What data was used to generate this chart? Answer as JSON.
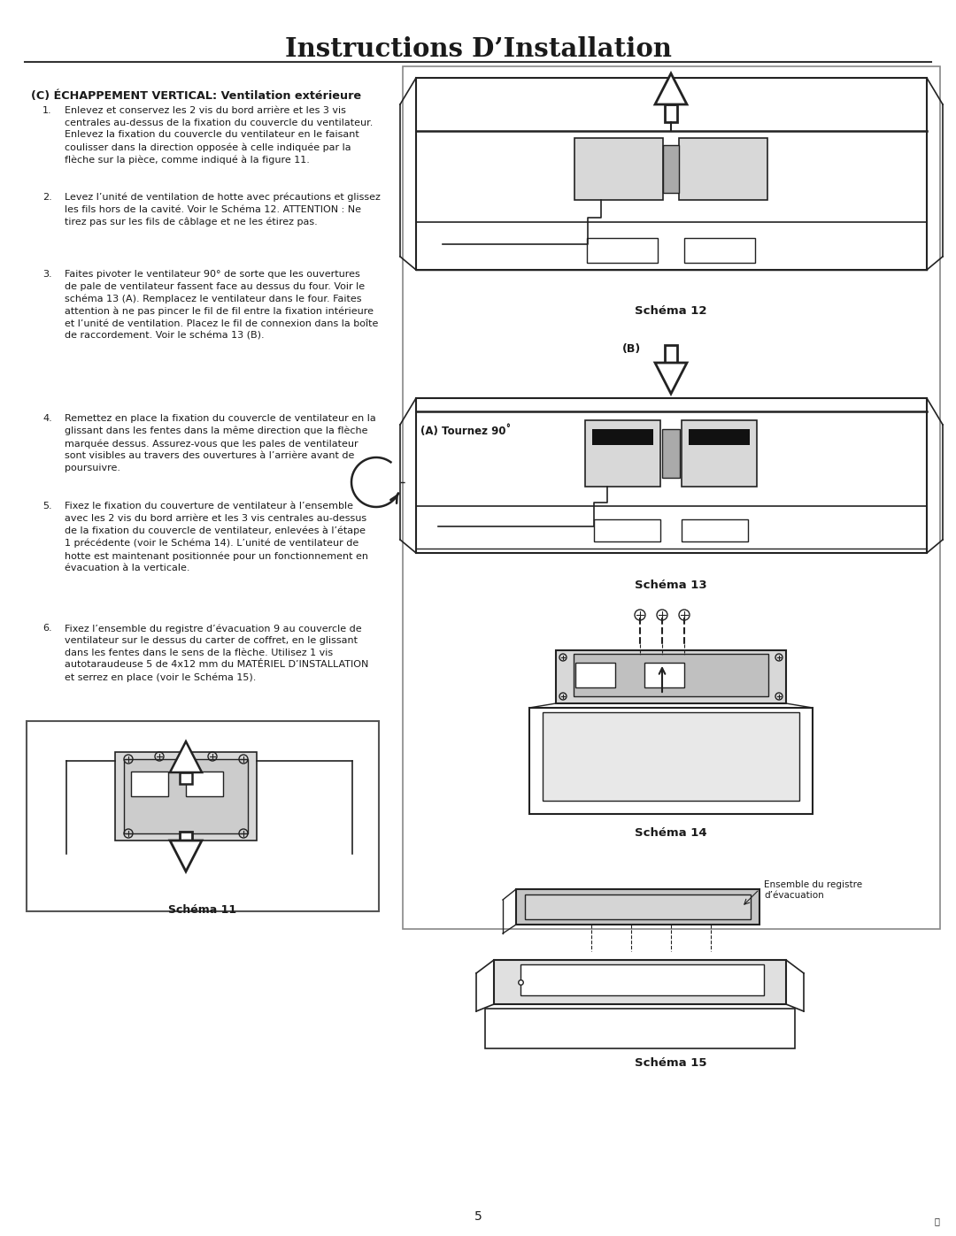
{
  "title": "Instructions D’Installation",
  "title_fontsize": 21,
  "title_fontweight": "bold",
  "background_color": "#ffffff",
  "text_color": "#1a1a1a",
  "section_header": "(C) ÉCHAPPEMENT VERTICAL: Ventilation extérieure",
  "items": [
    {
      "num": "1.",
      "text": "Enlevez et conservez les 2 vis du bord arrière et les 3 vis\ncentrales au-dessus de la fixation du couvercle du ventilateur.\nEnlevez la fixation du couvercle du ventilateur en le faisant\ncoulisser dans la direction opposée à celle indiquée par la\nflèche sur la pièce, comme indiqué à la figure 11."
    },
    {
      "num": "2.",
      "text": "Levez l’unité de ventilation de hotte avec précautions et glissez\nles fils hors de la cavité. Voir le Schéma 12. ATTENTION : Ne\ntirez pas sur les fils de câblage et ne les étirez pas."
    },
    {
      "num": "3.",
      "text": "Faites pivoter le ventilateur 90° de sorte que les ouvertures\nde pale de ventilateur fassent face au dessus du four. Voir le\nschéma 13 (A). Remplacez le ventilateur dans le four. Faites\nattention à ne pas pincer le fil de fil entre la fixation intérieure\net l’unité de ventilation. Placez le fil de connexion dans la boîte\nde raccordement. Voir le schéma 13 (B)."
    },
    {
      "num": "4.",
      "text": "Remettez en place la fixation du couvercle de ventilateur en la\nglissant dans les fentes dans la même direction que la flèche\nmarquée dessus. Assurez-vous que les pales de ventilateur\nsont visibles au travers des ouvertures à l’arrière avant de\npoursuivre."
    },
    {
      "num": "5.",
      "text": "Fixez le fixation du couverture de ventilateur à l’ensemble\navec les 2 vis du bord arrière et les 3 vis centrales au-dessus\nde la fixation du couvercle de ventilateur, enlevées à l’étape\n1 précédente (voir le Schéma 14). L’unité de ventilateur de\nhotte est maintenant positionnée pour un fonctionnement en\névacuation à la verticale."
    },
    {
      "num": "6.",
      "text": "Fixez l’ensemble du registre d’évacuation 9 au couvercle de\nventilateur sur le dessus du carter de coffret, en le glissant\ndans les fentes dans le sens de la flèche. Utilisez 1 vis\nautotaraudeuse 5 de 4x12 mm du MATÉRIEL D’INSTALLATION\net serrez en place (voir le Schéma 15)."
    }
  ],
  "schema11_caption": "Schéma 11",
  "schema12_caption": "Schéma 12",
  "schema13_caption": "Schéma 13",
  "schema14_caption": "Schéma 14",
  "schema15_caption": "Schéma 15",
  "page_number": "5",
  "footer_mark": "ⓕ",
  "line_color": "#222222",
  "fill_light": "#d8d8d8",
  "fill_medium": "#b0b0b0",
  "fill_dark": "#888888"
}
